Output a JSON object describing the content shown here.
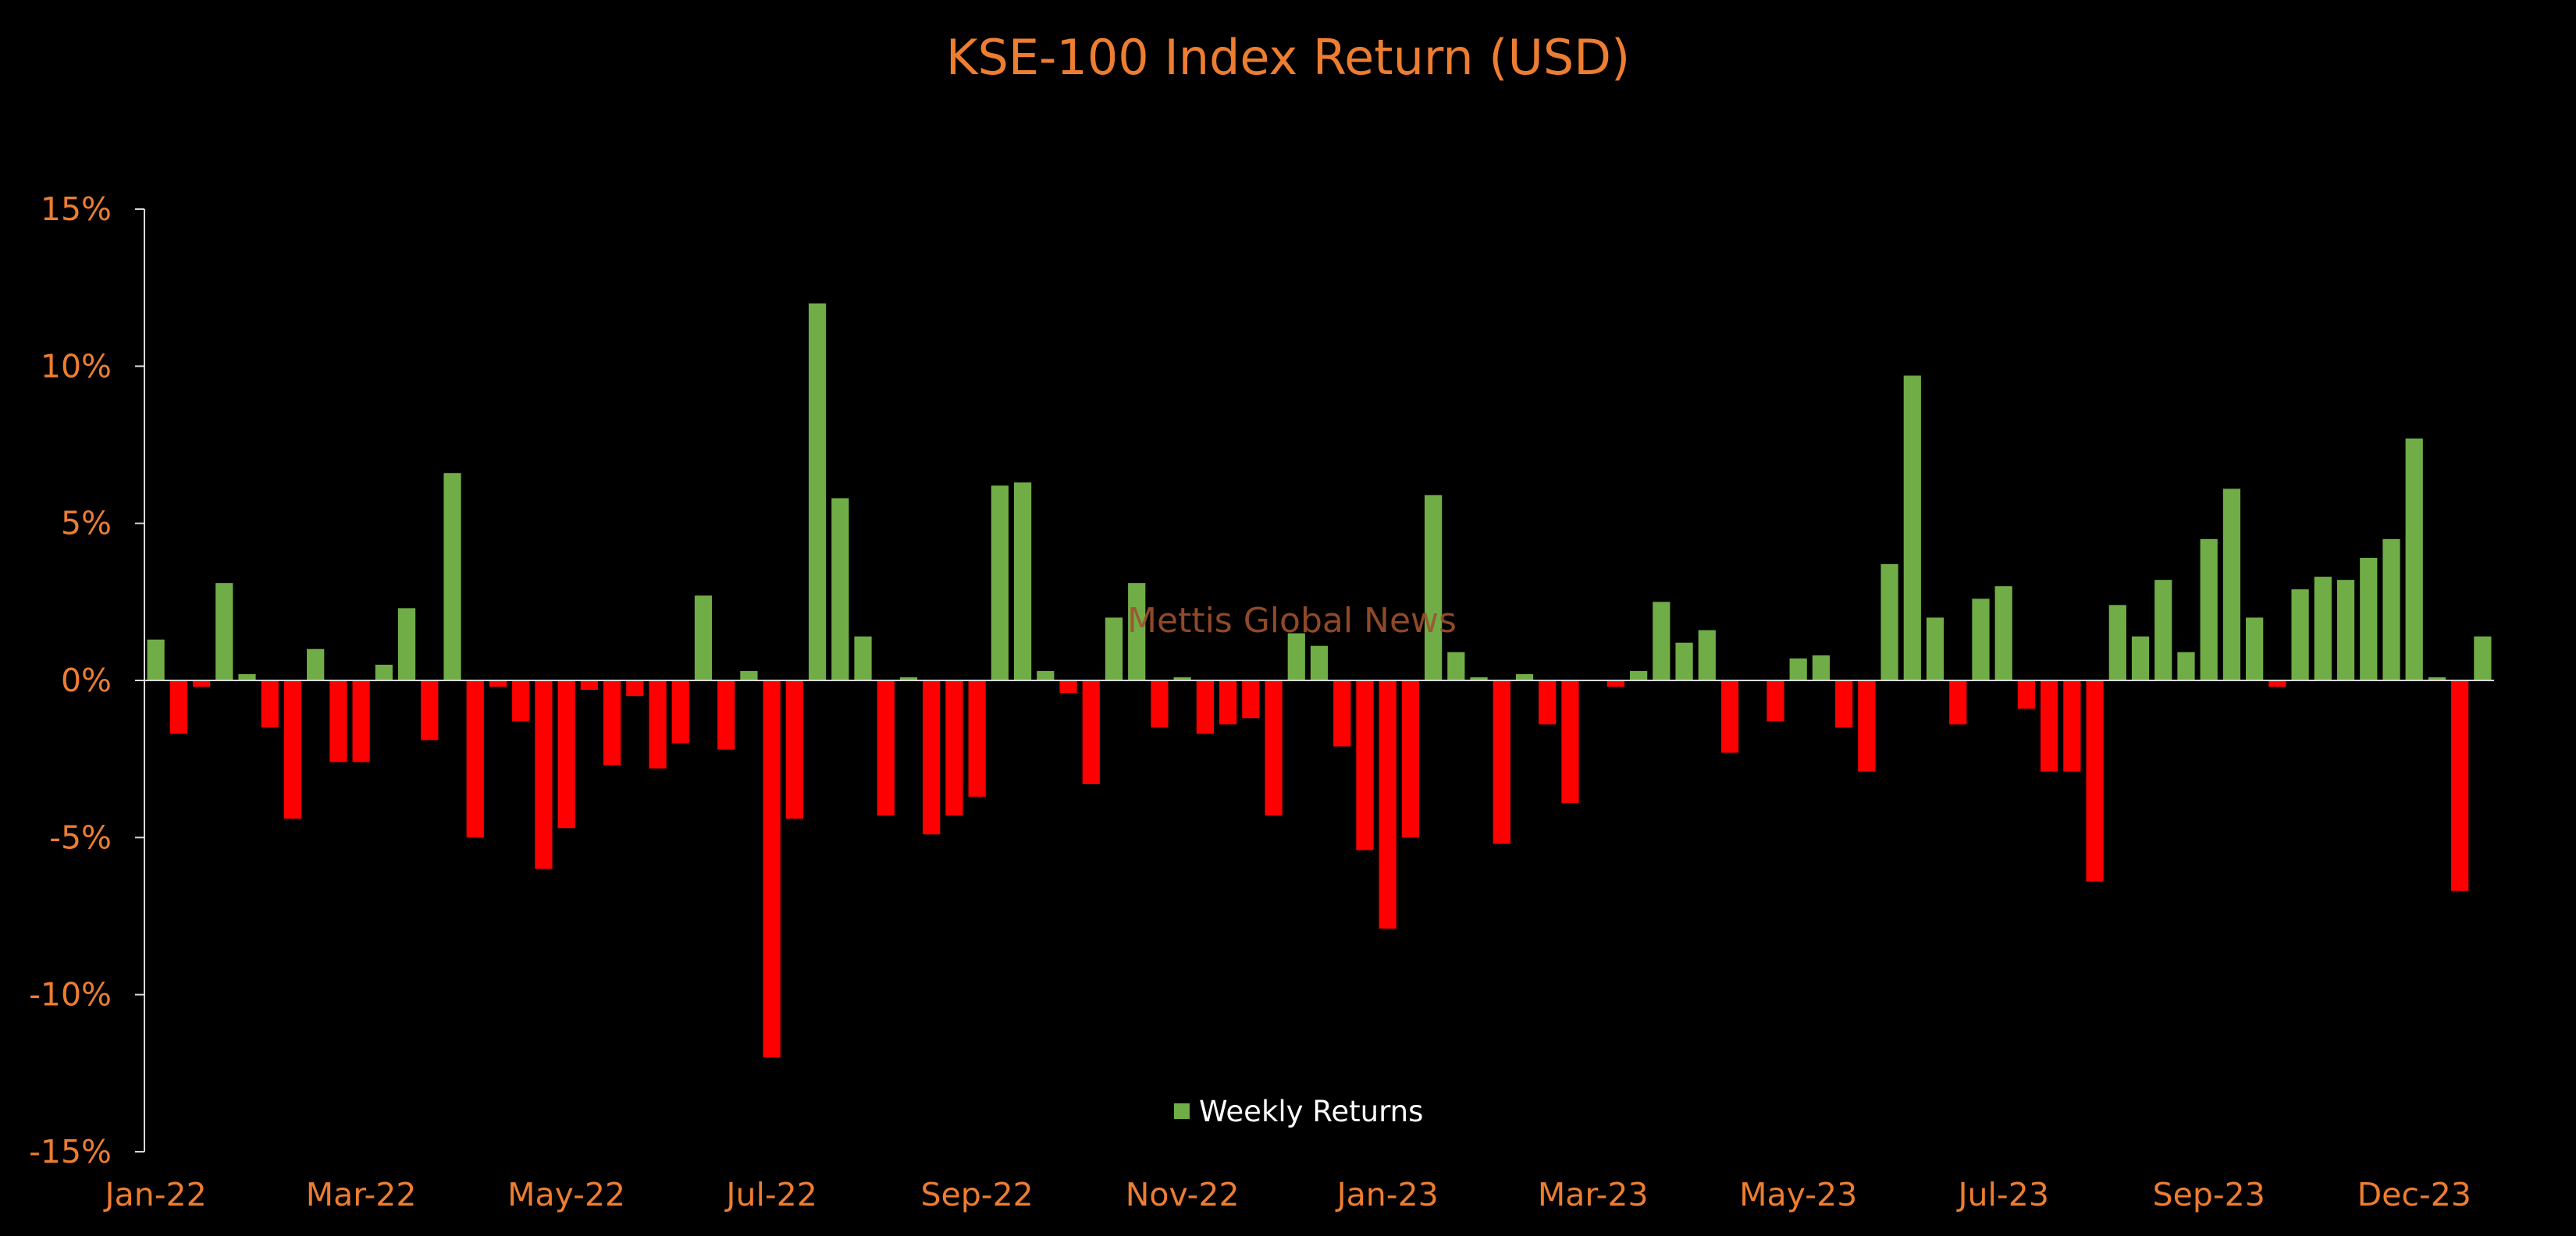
{
  "chart_data": {
    "type": "bar",
    "title": "KSE-100 Index Return (USD)",
    "watermark": "Mettis Global News",
    "xlabel": "",
    "ylabel": "",
    "ylim": [
      -15,
      15
    ],
    "y_ticks": [
      15,
      10,
      5,
      0,
      -5,
      -10,
      -15
    ],
    "y_tick_labels": [
      "15%",
      "10%",
      "5%",
      "0%",
      "-5%",
      "-10%",
      "-15%"
    ],
    "x_tick_labels": [
      "Jan-22",
      "Mar-22",
      "May-22",
      "Jul-22",
      "Sep-22",
      "Nov-22",
      "Jan-23",
      "Mar-23",
      "May-23",
      "Jul-23",
      "Sep-23",
      "Dec-23"
    ],
    "x_tick_index": [
      0,
      9,
      18,
      27,
      36,
      45,
      54,
      63,
      72,
      81,
      90,
      99
    ],
    "legend": {
      "position": "bottom-center",
      "entries": [
        "Weekly Returns"
      ]
    },
    "colors": {
      "positive": "#70AD47",
      "negative": "#FF0000",
      "text": "#ED7D31",
      "axis": "#D9D9D9",
      "watermark": "#A0522D"
    },
    "series": [
      {
        "name": "Weekly Returns",
        "values": [
          1.3,
          -1.7,
          -0.2,
          3.1,
          0.2,
          -1.5,
          -4.4,
          1.0,
          -2.6,
          -2.6,
          0.5,
          2.3,
          -1.9,
          6.6,
          -5.0,
          -0.2,
          -1.3,
          -6.0,
          -4.7,
          -0.3,
          -2.7,
          -0.5,
          -2.8,
          -2.0,
          2.7,
          -2.2,
          0.3,
          -12.0,
          -4.4,
          12.0,
          5.8,
          1.4,
          -4.3,
          0.1,
          -4.9,
          -4.3,
          -3.7,
          6.2,
          6.3,
          0.3,
          -0.4,
          -3.3,
          2.0,
          3.1,
          -1.5,
          0.1,
          -1.7,
          -1.4,
          -1.2,
          -4.3,
          1.5,
          1.1,
          -2.1,
          -5.4,
          -7.9,
          -5.0,
          5.9,
          0.9,
          0.1,
          -5.2,
          0.2,
          -1.4,
          -3.9,
          0.0,
          -0.2,
          0.3,
          2.5,
          1.2,
          1.6,
          -2.3,
          0.0,
          -1.3,
          0.7,
          0.8,
          -1.5,
          -2.9,
          3.7,
          9.7,
          2.0,
          -1.4,
          2.6,
          3.0,
          -0.9,
          -2.9,
          -2.9,
          -6.4,
          2.4,
          1.4,
          3.2,
          0.9,
          4.5,
          6.1,
          2.0,
          -0.2,
          2.9,
          3.3,
          3.2,
          3.9,
          4.5,
          7.7,
          0.1,
          -6.7,
          1.4
        ]
      }
    ]
  }
}
